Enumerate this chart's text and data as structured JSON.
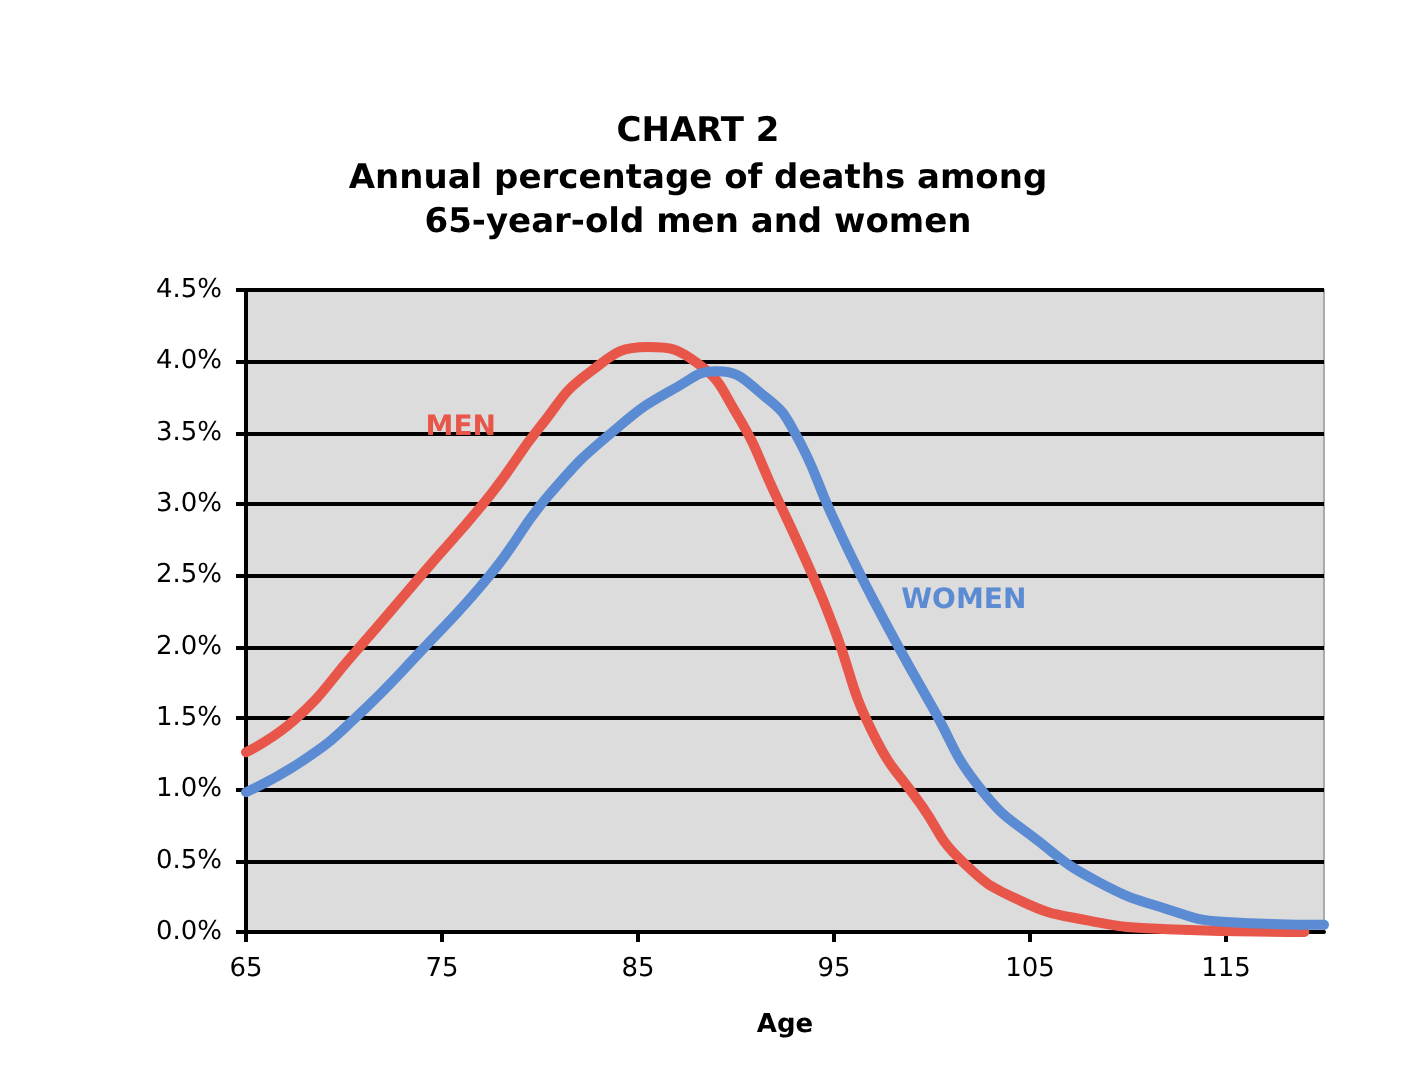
{
  "chart_data": {
    "type": "line",
    "title": "CHART 2",
    "subtitle": "Annual percentage of deaths among\n65-year-old men and women",
    "xlabel": "Age",
    "series": [
      {
        "name": "MEN",
        "color": "#e8564a",
        "x": [
          65,
          67.5,
          70.5,
          74,
          77.5,
          80,
          82.5,
          85.5,
          88,
          90,
          92,
          94,
          95,
          97,
          99.5,
          101.5,
          104.5,
          108,
          112,
          119
        ],
        "values": [
          1.26,
          1.49,
          1.95,
          2.51,
          3.07,
          3.54,
          3.92,
          4.1,
          3.99,
          3.64,
          3.07,
          2.47,
          2.13,
          1.39,
          0.88,
          0.5,
          0.22,
          0.08,
          0.02,
          0
        ]
      },
      {
        "name": "WOMEN",
        "color": "#5b8bd2",
        "x": [
          65,
          68,
          70.5,
          74,
          77.5,
          80.5,
          84,
          87,
          89,
          91.5,
          93,
          95,
          97,
          100,
          102.5,
          105.5,
          108.5,
          112,
          115,
          120
        ],
        "values": [
          0.98,
          1.21,
          1.49,
          1.98,
          2.51,
          3.07,
          3.54,
          3.82,
          3.93,
          3.75,
          3.5,
          2.89,
          2.33,
          1.58,
          1.0,
          0.63,
          0.35,
          0.16,
          0.07,
          0.05
        ]
      }
    ],
    "xlim": [
      65,
      120
    ],
    "xticks": [
      65,
      75,
      85,
      95,
      105,
      115
    ],
    "ylim": [
      0,
      4.5
    ],
    "yticks": [
      {
        "value": 0,
        "label": "0.0%"
      },
      {
        "value": 0.5,
        "label": "0.5%"
      },
      {
        "value": 1,
        "label": "1.0%"
      },
      {
        "value": 1.5,
        "label": "1.5%"
      },
      {
        "value": 2,
        "label": "2.0%"
      },
      {
        "value": 2.5,
        "label": "2.5%"
      },
      {
        "value": 3,
        "label": "3.0%"
      },
      {
        "value": 3.5,
        "label": "3.5%"
      },
      {
        "value": 4,
        "label": "4.0%"
      },
      {
        "value": 4.5,
        "label": "4.5%"
      }
    ],
    "grid": "y",
    "legend": false,
    "marker": "none",
    "line_style": "solid"
  }
}
